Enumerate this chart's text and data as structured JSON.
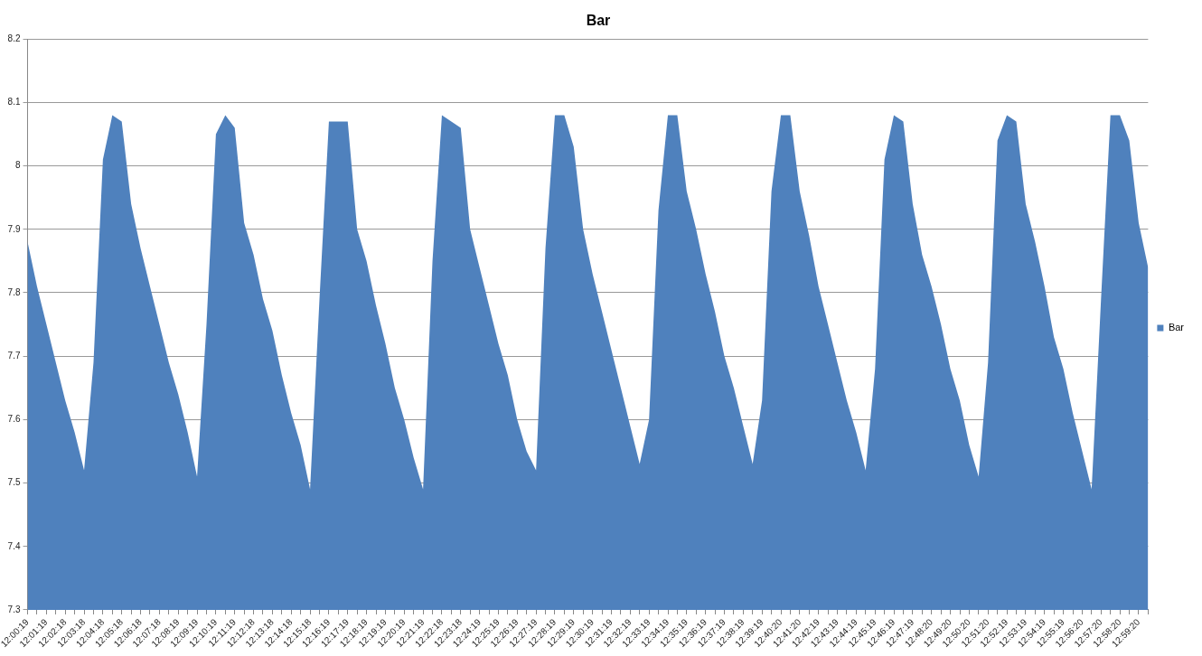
{
  "chart_data": {
    "type": "area",
    "title": "Bar",
    "legend": "right",
    "grid": "y",
    "categories": [
      "12:00:19",
      null,
      "12:01:19",
      null,
      "12:02:18",
      null,
      "12:03:18",
      null,
      "12:04:18",
      null,
      "12:05:18",
      null,
      "12:06:18",
      null,
      "12:07:18",
      null,
      "12:08:19",
      null,
      "12:09:19",
      null,
      "12:10:19",
      null,
      "12:11:19",
      null,
      "12:12:18",
      null,
      "12:13:18",
      null,
      "12:14:18",
      null,
      "12:15:18",
      null,
      "12:16:19",
      null,
      "12:17:19",
      null,
      "12:18:19",
      null,
      "12:19:19",
      null,
      "12:20:19",
      null,
      "12:21:19",
      null,
      "12:22:18",
      null,
      "12:23:18",
      null,
      "12:24:19",
      null,
      "12:25:19",
      null,
      "12:26:19",
      null,
      "12:27:19",
      null,
      "12:28:19",
      null,
      "12:29:19",
      null,
      "12:30:19",
      null,
      "12:31:19",
      null,
      "12:32:19",
      null,
      "12:33:19",
      null,
      "12:34:19",
      null,
      "12:35:19",
      null,
      "12:36:19",
      null,
      "12:37:19",
      null,
      "12:38:19",
      null,
      "12:39:19",
      null,
      "12:40:20",
      null,
      "12:41:20",
      null,
      "12:42:19",
      null,
      "12:43:19",
      null,
      "12:44:19",
      null,
      "12:45:19",
      null,
      "12:46:19",
      null,
      "12:47:19",
      null,
      "12:48:20",
      null,
      "12:49:20",
      null,
      "12:50:20",
      null,
      "12:51:20",
      null,
      "12:52:19",
      null,
      "12:53:19",
      null,
      "12:54:19",
      null,
      "12:55:19",
      null,
      "12:56:20",
      null,
      "12:57:20",
      null,
      "12:58:20",
      null,
      "12:59:20",
      null
    ],
    "series": [
      {
        "name": "Bar",
        "color": "#4f81bd",
        "values": [
          7.88,
          7.81,
          7.75,
          7.69,
          7.63,
          7.58,
          7.52,
          7.69,
          8.01,
          8.08,
          8.07,
          7.94,
          7.87,
          7.81,
          7.75,
          7.69,
          7.64,
          7.58,
          7.51,
          7.75,
          8.05,
          8.08,
          8.06,
          7.91,
          7.86,
          7.79,
          7.74,
          7.67,
          7.61,
          7.56,
          7.49,
          7.79,
          8.07,
          8.07,
          8.07,
          7.9,
          7.85,
          7.78,
          7.72,
          7.65,
          7.6,
          7.54,
          7.49,
          7.85,
          8.08,
          8.07,
          8.06,
          7.9,
          7.84,
          7.78,
          7.72,
          7.67,
          7.6,
          7.55,
          7.52,
          7.87,
          8.08,
          8.08,
          8.03,
          7.9,
          7.83,
          7.77,
          7.71,
          7.65,
          7.59,
          7.53,
          7.6,
          7.93,
          8.08,
          8.08,
          7.96,
          7.9,
          7.83,
          7.77,
          7.7,
          7.65,
          7.59,
          7.53,
          7.63,
          7.96,
          8.08,
          8.08,
          7.96,
          7.89,
          7.81,
          7.75,
          7.69,
          7.63,
          7.58,
          7.52,
          7.68,
          8.01,
          8.08,
          8.07,
          7.94,
          7.86,
          7.81,
          7.75,
          7.68,
          7.63,
          7.56,
          7.51,
          7.69,
          8.04,
          8.08,
          8.07,
          7.94,
          7.88,
          7.81,
          7.73,
          7.68,
          7.61,
          7.55,
          7.49,
          7.79,
          8.08,
          8.08,
          8.04,
          7.91,
          7.84
        ]
      }
    ],
    "ylim": [
      7.3,
      8.2
    ],
    "yticks": [
      7.3,
      7.4,
      7.5,
      7.6,
      7.7,
      7.8,
      7.9,
      8,
      8.1,
      8.2
    ]
  }
}
